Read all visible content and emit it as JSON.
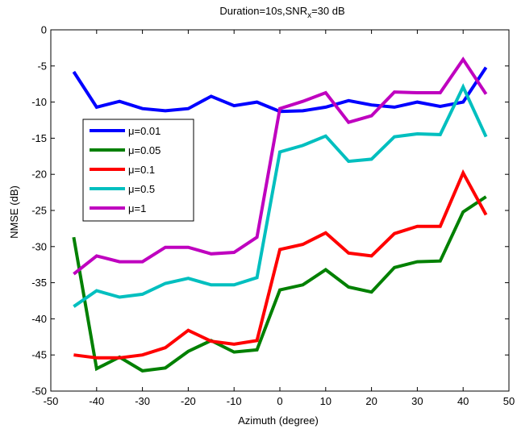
{
  "chart_data": {
    "type": "line",
    "title": "Duration=10s,SNR",
    "title_sub": "x",
    "title_suffix": "=30 dB",
    "xlabel": "Azimuth (degree)",
    "ylabel": "NMSE (dB)",
    "xlim": [
      -50,
      50
    ],
    "ylim": [
      -50,
      0
    ],
    "xticks": [
      -50,
      -40,
      -30,
      -20,
      -10,
      0,
      10,
      20,
      30,
      40,
      50
    ],
    "yticks": [
      0,
      -5,
      -10,
      -15,
      -20,
      -25,
      -30,
      -35,
      -40,
      -45,
      -50
    ],
    "grid": false,
    "legend_position": "left",
    "x": [
      -45,
      -40,
      -35,
      -30,
      -25,
      -20,
      -15,
      -10,
      -5,
      0,
      5,
      10,
      15,
      20,
      25,
      30,
      35,
      40,
      45
    ],
    "series": [
      {
        "name": "μ=0.01",
        "color": "#0000ff",
        "values": [
          -5.8,
          -10.7,
          -9.9,
          -10.9,
          -11.2,
          -10.9,
          -9.2,
          -10.5,
          -10.0,
          -11.3,
          -11.2,
          -10.7,
          -9.8,
          -10.4,
          -10.7,
          -10.0,
          -10.6,
          -10.0,
          -5.2
        ]
      },
      {
        "name": "μ=0.05",
        "color": "#008000",
        "values": [
          -28.7,
          -46.9,
          -45.3,
          -47.2,
          -46.8,
          -44.5,
          -43.0,
          -44.6,
          -44.3,
          -36.0,
          -35.3,
          -33.2,
          -35.6,
          -36.3,
          -32.9,
          -32.1,
          -32.0,
          -25.2,
          -23.1
        ]
      },
      {
        "name": "μ=0.1",
        "color": "#ff0000",
        "values": [
          -45.0,
          -45.4,
          -45.4,
          -45.0,
          -44.0,
          -41.6,
          -43.1,
          -43.5,
          -43.0,
          -30.4,
          -29.7,
          -28.1,
          -30.9,
          -31.3,
          -28.2,
          -27.2,
          -27.2,
          -19.8,
          -25.6
        ]
      },
      {
        "name": "μ=0.5",
        "color": "#00bfbf",
        "values": [
          -38.3,
          -36.1,
          -37.0,
          -36.6,
          -35.1,
          -34.4,
          -35.3,
          -35.3,
          -34.3,
          -16.9,
          -16.0,
          -14.7,
          -18.2,
          -17.9,
          -14.8,
          -14.4,
          -14.5,
          -7.9,
          -14.8
        ]
      },
      {
        "name": "μ=1",
        "color": "#bf00bf",
        "values": [
          -33.8,
          -31.3,
          -32.1,
          -32.1,
          -30.1,
          -30.1,
          -31.0,
          -30.8,
          -28.7,
          -10.9,
          -9.9,
          -8.7,
          -12.8,
          -11.9,
          -8.6,
          -8.7,
          -8.7,
          -4.1,
          -8.9
        ]
      }
    ]
  }
}
